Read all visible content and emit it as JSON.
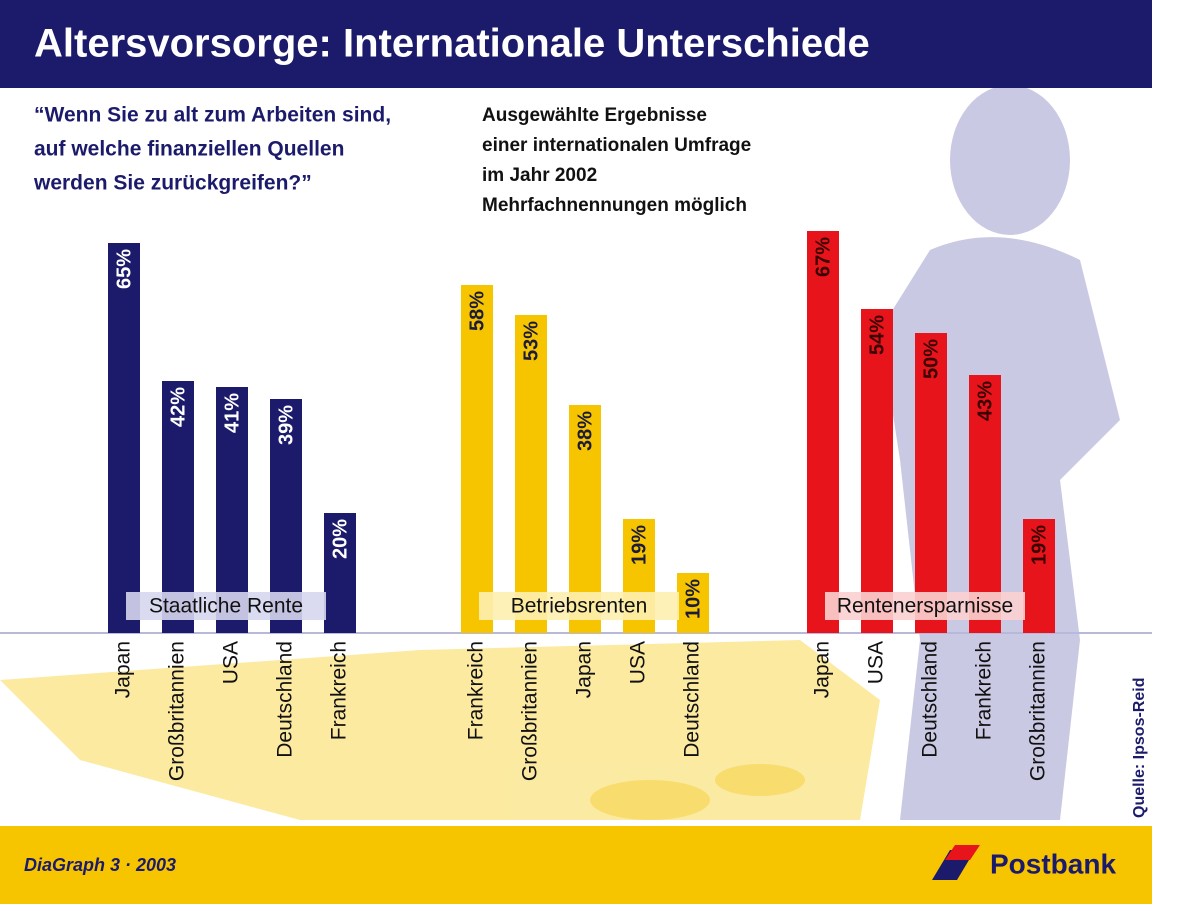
{
  "chart_data": {
    "type": "grouped-bar",
    "title": "Altersvorsorge: Internationale Unterschiede",
    "question": [
      "“Wenn Sie zu alt zum Arbeiten sind,",
      "auf welche finanziellen Quellen",
      "werden Sie zurückgreifen?”"
    ],
    "notes": [
      "Ausgewählte Ergebnisse",
      "einer internationalen Umfrage",
      "im Jahr 2002",
      "Mehrfachnennungen möglich"
    ],
    "series": [
      {
        "name": "Staatliche Rente",
        "color": "#1c1b6b",
        "label_color": "#ffffff",
        "categories": [
          "Japan",
          "Großbritannien",
          "USA",
          "Deutschland",
          "Frankreich"
        ],
        "values": [
          65,
          42,
          41,
          39,
          20
        ],
        "value_labels": [
          "65%",
          "42%",
          "41%",
          "39%",
          "20%"
        ]
      },
      {
        "name": "Betriebsrenten",
        "color": "#f7c500",
        "label_color": "#1c1b3b",
        "categories": [
          "Frankreich",
          "Großbritannien",
          "Japan",
          "USA",
          "Deutschland"
        ],
        "values": [
          58,
          53,
          38,
          19,
          10
        ],
        "value_labels": [
          "58%",
          "53%",
          "38%",
          "19%",
          "10%"
        ]
      },
      {
        "name": "Rentenersparnisse",
        "color": "#e8141c",
        "label_color": "#3a0000",
        "categories": [
          "Japan",
          "USA",
          "Deutschland",
          "Frankreich",
          "Großbritannien"
        ],
        "values": [
          67,
          54,
          50,
          43,
          19
        ],
        "value_labels": [
          "67%",
          "54%",
          "50%",
          "43%",
          "19%"
        ]
      }
    ],
    "source": "Quelle: Ipsos-Reid",
    "footer": "DiaGraph 3 · 2003",
    "brand": "Postbank"
  }
}
